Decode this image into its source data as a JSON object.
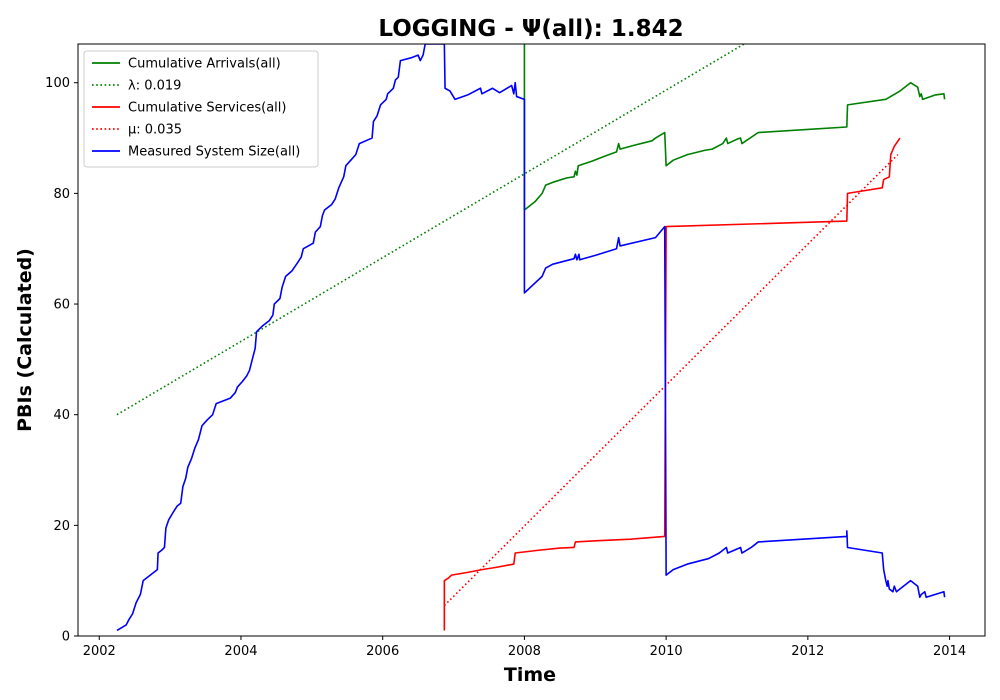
{
  "chart_data": {
    "type": "line",
    "title": "LOGGING -  Ψ(all): 1.842",
    "xlabel": "Time",
    "ylabel": "PBIs (Calculated)",
    "xlim": [
      2001.7,
      2014.5
    ],
    "ylim": [
      0,
      107
    ],
    "xticks": [
      2002,
      2004,
      2006,
      2008,
      2010,
      2012,
      2014
    ],
    "yticks": [
      0,
      20,
      40,
      60,
      80,
      100
    ],
    "grid": false,
    "legend_position": "top-left",
    "series": [
      {
        "name": "Cumulative Arrivals(all)",
        "color": "#008000",
        "style": "solid",
        "points": [
          [
            2008.0,
            107
          ],
          [
            2008.0,
            77
          ],
          [
            2008.15,
            78.5
          ],
          [
            2008.25,
            80
          ],
          [
            2008.3,
            81.5
          ],
          [
            2008.4,
            82
          ],
          [
            2008.6,
            82.8
          ],
          [
            2008.7,
            83
          ],
          [
            2008.72,
            84
          ],
          [
            2008.74,
            83.3
          ],
          [
            2008.76,
            85
          ],
          [
            2008.95,
            85.8
          ],
          [
            2009.15,
            86.8
          ],
          [
            2009.3,
            87.5
          ],
          [
            2009.33,
            89
          ],
          [
            2009.35,
            88
          ],
          [
            2009.55,
            88.7
          ],
          [
            2009.8,
            89.5
          ],
          [
            2009.85,
            90
          ],
          [
            2009.98,
            91
          ],
          [
            2010.0,
            85
          ],
          [
            2010.1,
            86
          ],
          [
            2010.3,
            87
          ],
          [
            2010.55,
            87.8
          ],
          [
            2010.65,
            88
          ],
          [
            2010.8,
            89
          ],
          [
            2010.85,
            90
          ],
          [
            2010.87,
            89
          ],
          [
            2011.0,
            89.8
          ],
          [
            2011.05,
            90
          ],
          [
            2011.07,
            89
          ],
          [
            2011.3,
            91
          ],
          [
            2012.55,
            92
          ],
          [
            2012.56,
            96
          ],
          [
            2013.1,
            97
          ],
          [
            2013.3,
            98.5
          ],
          [
            2013.45,
            100
          ],
          [
            2013.55,
            99.2
          ],
          [
            2013.58,
            97.5
          ],
          [
            2013.6,
            98
          ],
          [
            2013.62,
            97
          ],
          [
            2013.8,
            97.8
          ],
          [
            2013.92,
            98
          ],
          [
            2013.93,
            97
          ]
        ]
      },
      {
        "name": "λ: 0.019",
        "color": "#008000",
        "style": "dotted",
        "points": [
          [
            2002.25,
            40
          ],
          [
            2011.1,
            107
          ]
        ]
      },
      {
        "name": "Cumulative Services(all)",
        "color": "#ff0000",
        "style": "solid",
        "points": [
          [
            2006.87,
            1
          ],
          [
            2006.87,
            10
          ],
          [
            2006.93,
            10.5
          ],
          [
            2006.97,
            11
          ],
          [
            2007.2,
            11.5
          ],
          [
            2007.4,
            12
          ],
          [
            2007.6,
            12.4
          ],
          [
            2007.85,
            13
          ],
          [
            2007.87,
            15
          ],
          [
            2008.2,
            15.5
          ],
          [
            2008.5,
            15.9
          ],
          [
            2008.7,
            16
          ],
          [
            2008.72,
            17
          ],
          [
            2009.0,
            17.2
          ],
          [
            2009.5,
            17.5
          ],
          [
            2009.98,
            18
          ],
          [
            2010.0,
            74
          ],
          [
            2012.55,
            75
          ],
          [
            2012.56,
            80
          ],
          [
            2012.8,
            80.5
          ],
          [
            2013.05,
            81
          ],
          [
            2013.07,
            82.5
          ],
          [
            2013.15,
            83
          ],
          [
            2013.17,
            87
          ],
          [
            2013.22,
            88.5
          ],
          [
            2013.3,
            90
          ]
        ]
      },
      {
        "name": "μ: 0.035",
        "color": "#ff0000",
        "style": "dotted",
        "points": [
          [
            2006.87,
            5.5
          ],
          [
            2013.27,
            87
          ]
        ]
      },
      {
        "name": "Measured System Size(all)",
        "color": "#0000ff",
        "style": "solid",
        "points": [
          [
            2002.25,
            1
          ],
          [
            2002.38,
            2
          ],
          [
            2002.42,
            3
          ],
          [
            2002.47,
            4
          ],
          [
            2002.52,
            6
          ],
          [
            2002.58,
            7.5
          ],
          [
            2002.62,
            10
          ],
          [
            2002.72,
            11
          ],
          [
            2002.82,
            12
          ],
          [
            2002.83,
            15
          ],
          [
            2002.88,
            15.5
          ],
          [
            2002.92,
            16
          ],
          [
            2002.94,
            19.5
          ],
          [
            2002.98,
            21
          ],
          [
            2003.05,
            22.5
          ],
          [
            2003.1,
            23.5
          ],
          [
            2003.15,
            24
          ],
          [
            2003.18,
            27
          ],
          [
            2003.22,
            28.5
          ],
          [
            2003.25,
            30.5
          ],
          [
            2003.3,
            32
          ],
          [
            2003.35,
            34
          ],
          [
            2003.4,
            35.5
          ],
          [
            2003.45,
            38
          ],
          [
            2003.52,
            39
          ],
          [
            2003.6,
            40
          ],
          [
            2003.65,
            42
          ],
          [
            2003.85,
            43
          ],
          [
            2003.92,
            44
          ],
          [
            2003.95,
            45
          ],
          [
            2004.02,
            46
          ],
          [
            2004.08,
            47
          ],
          [
            2004.12,
            48
          ],
          [
            2004.16,
            50
          ],
          [
            2004.2,
            52
          ],
          [
            2004.22,
            55
          ],
          [
            2004.3,
            56
          ],
          [
            2004.4,
            57
          ],
          [
            2004.45,
            58
          ],
          [
            2004.47,
            60
          ],
          [
            2004.55,
            61
          ],
          [
            2004.58,
            63
          ],
          [
            2004.63,
            65
          ],
          [
            2004.72,
            66
          ],
          [
            2004.8,
            67.5
          ],
          [
            2004.85,
            68.5
          ],
          [
            2004.88,
            70
          ],
          [
            2005.02,
            71
          ],
          [
            2005.05,
            73
          ],
          [
            2005.12,
            74
          ],
          [
            2005.15,
            76
          ],
          [
            2005.18,
            77
          ],
          [
            2005.28,
            78
          ],
          [
            2005.33,
            79
          ],
          [
            2005.38,
            81
          ],
          [
            2005.45,
            83
          ],
          [
            2005.48,
            85
          ],
          [
            2005.55,
            86
          ],
          [
            2005.62,
            87
          ],
          [
            2005.67,
            89
          ],
          [
            2005.85,
            90
          ],
          [
            2005.87,
            93
          ],
          [
            2005.92,
            94
          ],
          [
            2005.97,
            96
          ],
          [
            2006.05,
            97
          ],
          [
            2006.07,
            98
          ],
          [
            2006.15,
            99
          ],
          [
            2006.18,
            100.5
          ],
          [
            2006.22,
            101
          ],
          [
            2006.25,
            104
          ],
          [
            2006.4,
            104.5
          ],
          [
            2006.5,
            105
          ],
          [
            2006.53,
            104
          ],
          [
            2006.57,
            105
          ],
          [
            2006.6,
            107
          ],
          [
            2006.87,
            107
          ],
          [
            2006.88,
            99
          ],
          [
            2006.95,
            98.5
          ],
          [
            2007.02,
            97
          ],
          [
            2007.2,
            97.8
          ],
          [
            2007.38,
            99
          ],
          [
            2007.4,
            98
          ],
          [
            2007.55,
            99
          ],
          [
            2007.65,
            98.2
          ],
          [
            2007.82,
            99.5
          ],
          [
            2007.85,
            98
          ],
          [
            2007.87,
            100
          ],
          [
            2007.89,
            97.5
          ],
          [
            2008.0,
            97
          ],
          [
            2008.0,
            62
          ],
          [
            2008.25,
            65
          ],
          [
            2008.3,
            66.5
          ],
          [
            2008.4,
            67.2
          ],
          [
            2008.7,
            68.2
          ],
          [
            2008.72,
            69
          ],
          [
            2008.74,
            68
          ],
          [
            2008.77,
            69
          ],
          [
            2008.78,
            68
          ],
          [
            2009.0,
            68.8
          ],
          [
            2009.3,
            70
          ],
          [
            2009.33,
            72
          ],
          [
            2009.35,
            70.5
          ],
          [
            2009.85,
            72
          ],
          [
            2009.98,
            74
          ],
          [
            2010.0,
            11
          ],
          [
            2010.1,
            12
          ],
          [
            2010.3,
            13
          ],
          [
            2010.6,
            14
          ],
          [
            2010.75,
            15
          ],
          [
            2010.85,
            16
          ],
          [
            2010.87,
            15
          ],
          [
            2011.05,
            16
          ],
          [
            2011.07,
            15
          ],
          [
            2011.2,
            16
          ],
          [
            2011.3,
            17
          ],
          [
            2012.55,
            18
          ],
          [
            2012.55,
            19
          ],
          [
            2012.56,
            16
          ],
          [
            2013.05,
            15
          ],
          [
            2013.07,
            12
          ],
          [
            2013.1,
            10
          ],
          [
            2013.12,
            9
          ],
          [
            2013.13,
            10
          ],
          [
            2013.15,
            8.5
          ],
          [
            2013.2,
            8
          ],
          [
            2013.22,
            9
          ],
          [
            2013.25,
            8
          ],
          [
            2013.45,
            10
          ],
          [
            2013.55,
            9
          ],
          [
            2013.58,
            7
          ],
          [
            2013.6,
            7.5
          ],
          [
            2013.65,
            8
          ],
          [
            2013.67,
            7
          ],
          [
            2013.92,
            8
          ],
          [
            2013.93,
            7
          ]
        ]
      }
    ]
  }
}
